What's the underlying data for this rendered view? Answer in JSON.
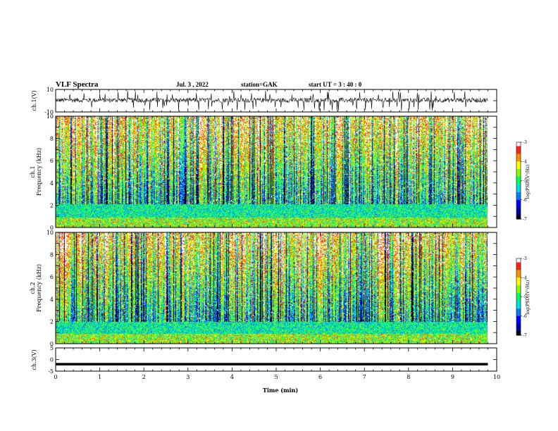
{
  "header": {
    "title": "VLF Spectra",
    "date": "Jul. 3 , 2022",
    "station": "station=GAK",
    "start_time": "start UT = 3 : 40 : 0"
  },
  "chart_data": [
    {
      "type": "line",
      "panel": "ch1-waveform",
      "ylabel": "ch.1(V)",
      "ylim": [
        -10,
        10
      ],
      "yticks": [
        10,
        -10
      ],
      "xlim": [
        0,
        10
      ],
      "x_data_range": [
        0,
        9.8
      ],
      "series": [
        {
          "description": "noisy voltage trace fluctuating mostly between -2 and 2 V with spikes to about ±9 V",
          "mean": 0.5,
          "spread": 2
        }
      ]
    },
    {
      "type": "heatmap",
      "panel": "ch1-spectrogram",
      "ylabel": "ch.1 Frequency (kHz)",
      "ylim": [
        0,
        10
      ],
      "yticks": [
        0,
        2,
        4,
        6,
        8,
        10
      ],
      "xlim": [
        0,
        10
      ],
      "x_data_range": [
        0,
        9.8
      ],
      "colorbar": {
        "label": "log(PSD)(V²/Hz)",
        "range": [
          -7,
          -3
        ],
        "ticks": [
          -3,
          -4,
          -5,
          -6,
          -7
        ]
      }
    },
    {
      "type": "heatmap",
      "panel": "ch2-spectrogram",
      "ylabel": "ch.2 Frequency (kHz)",
      "ylim": [
        0,
        10
      ],
      "yticks": [
        0,
        2,
        4,
        6,
        8,
        10
      ],
      "xlim": [
        0,
        10
      ],
      "x_data_range": [
        0,
        9.8
      ],
      "colorbar": {
        "label": "log(PSD)(V²/Hz)",
        "range": [
          -7,
          -3
        ],
        "ticks": [
          -3,
          -4,
          -5,
          -6,
          -7
        ]
      }
    },
    {
      "type": "line",
      "panel": "ch3-waveform",
      "ylabel": "ch.3(V)",
      "ylim": [
        -5,
        5
      ],
      "yticks": [
        5,
        0,
        -5
      ],
      "xlim": [
        0,
        10
      ],
      "x_data_range": [
        0,
        9.8
      ],
      "series": [
        {
          "description": "flat trace",
          "values": [
            -2,
            -2
          ]
        }
      ],
      "xlabel": "Time (min)",
      "xticks": [
        0,
        1,
        2,
        3,
        4,
        5,
        6,
        7,
        8,
        9,
        10
      ]
    }
  ],
  "labels": {
    "ch1_wave_ylabel": "ch.1(V)",
    "ch1_spec_ylabel_a": "ch.1",
    "ch1_spec_ylabel_b": "Frequency (kHz)",
    "ch2_spec_ylabel_a": "ch.2",
    "ch2_spec_ylabel_b": "Frequency (kHz)",
    "ch3_wave_ylabel": "ch.3(V)",
    "xlabel": "Time (min)",
    "colorbar_label": "log(PSD)(V²/Hz)"
  },
  "colors": {
    "palette": [
      "#000000",
      "#0000a0",
      "#0000ff",
      "#0080ff",
      "#00e0e0",
      "#00ff60",
      "#80ff00",
      "#ffff00",
      "#ff9000",
      "#ff2020",
      "#ffffff"
    ]
  }
}
